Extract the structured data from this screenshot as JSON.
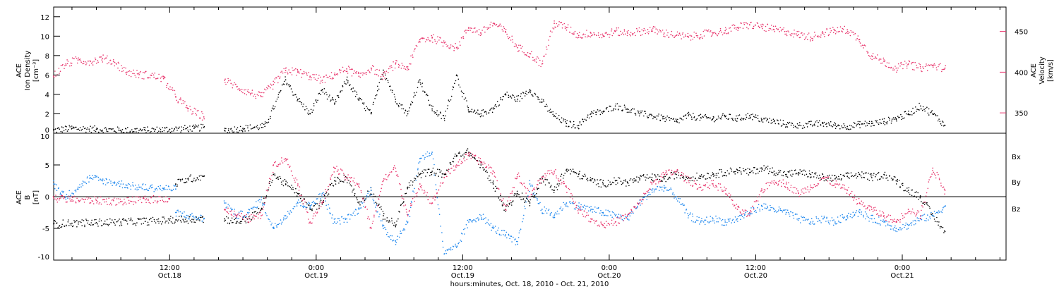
{
  "colors": {
    "black": "#000000",
    "pink": "#e8336b",
    "blue": "#1c86ee"
  },
  "x_axis": {
    "label": "hours:minutes, Oct. 18, 2010 - Oct. 21, 2010",
    "ticks": [
      {
        "hours": 12,
        "time": "12:00",
        "date": "Oct.18"
      },
      {
        "hours": 24,
        "time": "0:00",
        "date": "Oct.19"
      },
      {
        "hours": 36,
        "time": "12:00",
        "date": "Oct.19"
      },
      {
        "hours": 48,
        "time": "0:00",
        "date": "Oct.20"
      },
      {
        "hours": 60,
        "time": "12:00",
        "date": "Oct.20"
      },
      {
        "hours": 72,
        "time": "0:00",
        "date": "Oct.21"
      }
    ]
  },
  "chart_data": [
    {
      "type": "scatter",
      "panel": "top",
      "x_unit": "hours from Oct. 18, 2010 00:00",
      "xlim": [
        2.5,
        80.5
      ],
      "left_axis": {
        "label_lines": [
          "ACE",
          "Ion Density",
          "[cm⁻³]"
        ],
        "ylim": [
          0,
          13
        ],
        "ticks": [
          "0",
          "2",
          "4",
          "6",
          "8",
          "10",
          "12"
        ]
      },
      "right_axis": {
        "label_lines": [
          "ACE",
          "Velocity",
          "[km/s]"
        ],
        "ylim": [
          325,
          480
        ],
        "ticks": [
          "350",
          "400",
          "450"
        ]
      },
      "series": [
        {
          "axis": "left",
          "color": "#000000",
          "segments": [
            {
              "x": [
                2.5,
                4,
                6,
                8,
                10,
                12,
                14,
                14.8
              ],
              "y": [
                0.3,
                0.5,
                0.4,
                0.3,
                0.3,
                0.4,
                0.5,
                0.6
              ]
            },
            {
              "x": [
                16.5,
                18,
                19.8,
                20.5,
                21.5,
                22.5,
                23.5,
                24.5,
                25.5,
                26.5,
                27.5,
                28.5,
                29.5,
                30.5,
                31.5,
                32.5,
                33.5,
                34.5,
                35.5,
                36.5,
                37.5,
                38.5,
                39.5,
                40.5,
                41.5,
                42.5,
                43.5,
                44.5,
                45.5,
                46.5,
                47.5,
                48.5,
                49.5,
                50.5,
                51.5,
                52.5,
                53.5,
                54.5,
                55.5,
                56.5,
                57.5,
                58.5,
                59.5,
                60.5,
                61.5,
                62.5,
                63.5,
                64.5,
                65.5,
                66.5,
                67.5,
                68.5,
                69.5,
                70.5,
                71.5,
                72.5,
                73.5,
                74.5,
                75.5
              ],
              "y": [
                0.3,
                0.5,
                0.7,
                2.5,
                5.5,
                3.5,
                2.0,
                4.5,
                3.0,
                5.5,
                3.5,
                2.0,
                6.5,
                3.5,
                2.0,
                5.5,
                2.5,
                1.5,
                6.0,
                2.2,
                2.0,
                2.5,
                4.0,
                3.5,
                4.5,
                3.2,
                1.8,
                1.0,
                0.8,
                2.0,
                2.2,
                2.8,
                2.5,
                2.0,
                1.8,
                1.5,
                1.2,
                1.8,
                1.6,
                1.5,
                1.7,
                1.5,
                1.8,
                1.4,
                1.2,
                0.9,
                0.8,
                0.9,
                1.0,
                0.8,
                0.7,
                0.9,
                1.0,
                1.2,
                1.5,
                2.0,
                2.8,
                2.0,
                0.8
              ]
            }
          ]
        },
        {
          "axis": "right",
          "color": "#e8336b",
          "segments": [
            {
              "x": [
                2.5,
                3.5,
                4.5,
                5.5,
                6.5,
                7.5,
                8.5,
                9.5,
                10.5,
                11.5,
                12.5,
                13.5,
                14.8
              ],
              "y": [
                395,
                410,
                415,
                413,
                417,
                412,
                400,
                397,
                396,
                392,
                370,
                355,
                345
              ]
            },
            {
              "x": [
                16.5,
                17.5,
                18.5,
                19.5,
                20.5,
                21.5,
                22.5,
                23.5,
                24.5,
                25.5,
                26.5,
                27.5,
                28.5,
                29.5,
                30.5,
                31.5,
                32.5,
                33.5,
                34.5,
                35.5,
                36.5,
                37.5,
                38.5,
                39.5,
                40.5,
                41.5,
                42.5,
                43.5,
                44.5,
                45.5,
                46.5,
                47.5,
                48.5,
                49.5,
                50.5,
                51.5,
                52.5,
                53.5,
                54.5,
                55.5,
                56.5,
                57.5,
                58.5,
                59.5,
                60.5,
                61.5,
                62.5,
                63.5,
                64.5,
                65.5,
                66.5,
                67.5,
                68.5,
                69.5,
                70.5,
                71.5,
                72.5,
                73.5,
                74.5,
                75.5
              ],
              "y": [
                390,
                382,
                375,
                370,
                385,
                402,
                400,
                395,
                390,
                397,
                404,
                395,
                405,
                395,
                410,
                405,
                440,
                442,
                436,
                430,
                455,
                448,
                460,
                450,
                430,
                423,
                410,
                460,
                455,
                445,
                448,
                445,
                450,
                448,
                450,
                452,
                448,
                445,
                443,
                446,
                448,
                451,
                455,
                458,
                456,
                452,
                450,
                446,
                443,
                448,
                451,
                452,
                440,
                420,
                413,
                405,
                410,
                405,
                408,
                405
              ]
            }
          ]
        }
      ]
    },
    {
      "type": "scatter",
      "panel": "bottom",
      "x_unit": "hours from Oct. 18, 2010 00:00",
      "xlim": [
        2.5,
        80.5
      ],
      "left_axis": {
        "label_lines": [
          "ACE",
          "B",
          "[nT]"
        ],
        "ylim": [
          -10,
          10
        ],
        "ticks": [
          "-10",
          "-5",
          "0",
          "5",
          "10"
        ]
      },
      "zero_line": true,
      "legend": {
        "placement": "right",
        "labels": [
          "Bx",
          "By",
          "Bz"
        ]
      },
      "series": [
        {
          "name": "Bx",
          "color": "#000000",
          "segments": [
            {
              "x": [
                2.5,
                4,
                6,
                8,
                10,
                12,
                14.8
              ],
              "y": [
                -4.3,
                -4.2,
                -4.1,
                -4.0,
                -3.9,
                -3.7,
                -3.5
              ]
            },
            {
              "x": [
                12.5,
                13.5,
                14.8
              ],
              "y": [
                2.0,
                2.8,
                3.2
              ]
            },
            {
              "x": [
                16.5,
                17.5,
                18.5,
                19.5,
                20.5,
                21.5,
                22.5,
                23.5,
                24.5,
                25.5,
                26.5,
                27.5,
                28.5,
                29.5,
                30.5,
                31.5,
                32.5,
                33.5,
                34.5,
                35.5,
                36.5,
                37.5,
                38.5,
                39.5,
                40.5,
                41.5,
                42.5,
                43.5,
                44.5,
                45.5,
                46.5,
                47.5,
                48.5,
                49.5,
                50.5,
                51.5,
                52.5,
                53.5,
                54.5,
                55.5,
                56.5,
                57.5,
                58.5,
                59.5,
                60.5,
                61.5,
                62.5,
                63.5,
                64.5,
                65.5,
                66.5,
                67.5,
                68.5,
                69.5,
                70.5,
                71.5,
                72.5,
                73.5,
                74.5,
                75.5
              ],
              "y": [
                -3.5,
                -4.0,
                -3.5,
                -2.0,
                3.5,
                2.0,
                0.5,
                -2.0,
                -1.0,
                2.5,
                3.0,
                -1.0,
                1.0,
                -3.0,
                -4.5,
                1.5,
                3.5,
                4.0,
                3.5,
                6.5,
                7.0,
                5.0,
                2.0,
                -2.0,
                0.5,
                -1.0,
                3.0,
                1.0,
                4.2,
                3.5,
                2.5,
                2.0,
                2.5,
                2.2,
                2.8,
                3.0,
                2.8,
                3.5,
                3.0,
                3.2,
                3.5,
                3.8,
                4.2,
                3.8,
                4.5,
                4.0,
                3.5,
                3.8,
                3.5,
                3.0,
                2.8,
                3.2,
                3.5,
                3.0,
                3.5,
                2.5,
                1.0,
                0.0,
                -3.0,
                -5.5
              ]
            }
          ]
        },
        {
          "name": "By",
          "color": "#1c86ee",
          "segments": [
            {
              "x": [
                2.5,
                3.5,
                4.5,
                5.5,
                6.5,
                7.5,
                8.5,
                9.5,
                10.5,
                11.5,
                12.5
              ],
              "y": [
                2.0,
                0.0,
                1.5,
                3.0,
                2.5,
                2.2,
                1.8,
                1.5,
                1.4,
                1.3,
                1.2
              ]
            },
            {
              "x": [
                12.5,
                13.5,
                14.8
              ],
              "y": [
                -2.5,
                -3.0,
                -3.5
              ]
            },
            {
              "x": [
                16.5,
                17.5,
                18.5,
                19.5,
                20.5,
                21.5,
                22.5,
                23.5,
                24.5,
                25.5,
                26.5,
                27.5,
                28.5,
                29.5,
                30.5,
                31.5,
                32.5,
                33.5,
                34.5,
                35.5,
                36.5,
                37.5,
                38.5,
                39.5,
                40.5,
                41.5,
                42.5,
                43.5,
                44.5,
                45.5,
                46.5,
                47.5,
                48.5,
                49.5,
                50.5,
                51.5,
                52.5,
                53.5,
                54.5,
                55.5,
                56.5,
                57.5,
                58.5,
                59.5,
                60.5,
                61.5,
                62.5,
                63.5,
                64.5,
                65.5,
                66.5,
                67.5,
                68.5,
                69.5,
                70.5,
                71.5,
                72.5,
                73.5,
                74.5,
                75.5
              ],
              "y": [
                -1.0,
                -3.0,
                -2.5,
                -0.5,
                -5.0,
                -3.0,
                -1.0,
                -1.5,
                0.5,
                -4.0,
                -3.5,
                -2.0,
                1.0,
                -5.0,
                -7.0,
                -4.0,
                6.0,
                7.0,
                -9.0,
                -8.0,
                -4.0,
                -3.0,
                -5.0,
                -6.0,
                -7.5,
                2.0,
                -2.0,
                -3.0,
                -1.0,
                -1.5,
                -2.0,
                -2.5,
                -3.0,
                -3.5,
                -1.0,
                1.0,
                1.5,
                0.0,
                -3.0,
                -4.0,
                -3.5,
                -4.0,
                -3.5,
                -2.5,
                -1.5,
                -2.0,
                -2.5,
                -3.5,
                -4.0,
                -3.5,
                -4.0,
                -3.0,
                -2.5,
                -3.5,
                -4.0,
                -5.0,
                -4.5,
                -3.5,
                -3.0,
                -1.5
              ]
            }
          ]
        },
        {
          "name": "Bz",
          "color": "#e8336b",
          "segments": [
            {
              "x": [
                2.5,
                4,
                6,
                8,
                10,
                12
              ],
              "y": [
                -0.2,
                -0.5,
                -0.6,
                -0.8,
                -0.5,
                -0.3
              ]
            },
            {
              "x": [
                16.5,
                17.5,
                18.5,
                19.5,
                20.5,
                21.5,
                22.5,
                23.5,
                24.5,
                25.5,
                26.5,
                27.5,
                28.5,
                29.5,
                30.5,
                31.5,
                32.5,
                33.5,
                34.5,
                35.5,
                36.5,
                37.5,
                38.5,
                39.5,
                40.5,
                41.5,
                42.5,
                43.5,
                44.5,
                45.5,
                46.5,
                47.5,
                48.5,
                49.5,
                50.5,
                51.5,
                52.5,
                53.5,
                54.5,
                55.5,
                56.5,
                57.5,
                58.5,
                59.5,
                60.5,
                61.5,
                62.5,
                63.5,
                64.5,
                65.5,
                66.5,
                67.5,
                68.5,
                69.5,
                70.5,
                71.5,
                72.5,
                73.5,
                74.5,
                75.5
              ],
              "y": [
                -2.0,
                -3.0,
                -3.5,
                -3.0,
                5.0,
                6.0,
                2.0,
                -4.0,
                -1.0,
                4.5,
                3.0,
                2.0,
                -5.0,
                2.5,
                4.5,
                -3.0,
                2.0,
                -1.0,
                3.0,
                5.0,
                6.5,
                5.5,
                4.0,
                -2.0,
                3.5,
                0.0,
                3.0,
                4.0,
                1.5,
                -2.0,
                -3.5,
                -4.5,
                -4.0,
                -3.0,
                -1.0,
                2.0,
                3.5,
                4.0,
                2.5,
                1.5,
                2.0,
                1.0,
                -2.0,
                -3.0,
                1.0,
                2.5,
                2.0,
                0.5,
                1.5,
                3.0,
                2.0,
                1.0,
                -1.0,
                -2.0,
                -3.0,
                -4.0,
                -2.0,
                -3.0,
                4.5,
                1.0
              ]
            }
          ]
        }
      ]
    }
  ]
}
